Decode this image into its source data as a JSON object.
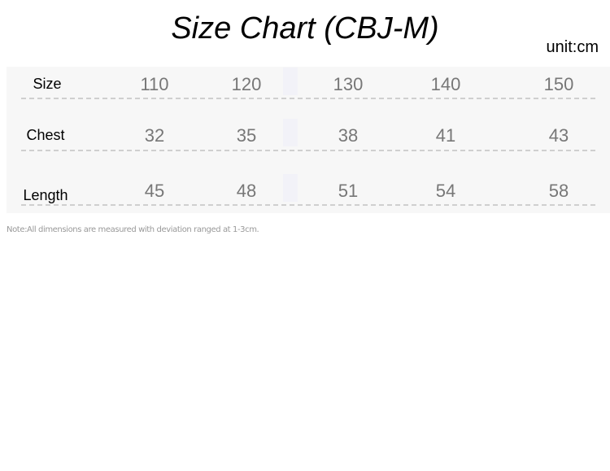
{
  "title": "Size Chart (CBJ-M)",
  "unit": "unit:cm",
  "table": {
    "rows": [
      {
        "label": "Size",
        "values": [
          "110",
          "120",
          "130",
          "140",
          "150"
        ]
      },
      {
        "label": "Chest",
        "values": [
          "32",
          "35",
          "38",
          "41",
          "43"
        ]
      },
      {
        "label": "Length",
        "values": [
          "45",
          "48",
          "51",
          "54",
          "58"
        ]
      }
    ]
  },
  "note": "Note:All dimensions are measured with deviation ranged at 1-3cm."
}
